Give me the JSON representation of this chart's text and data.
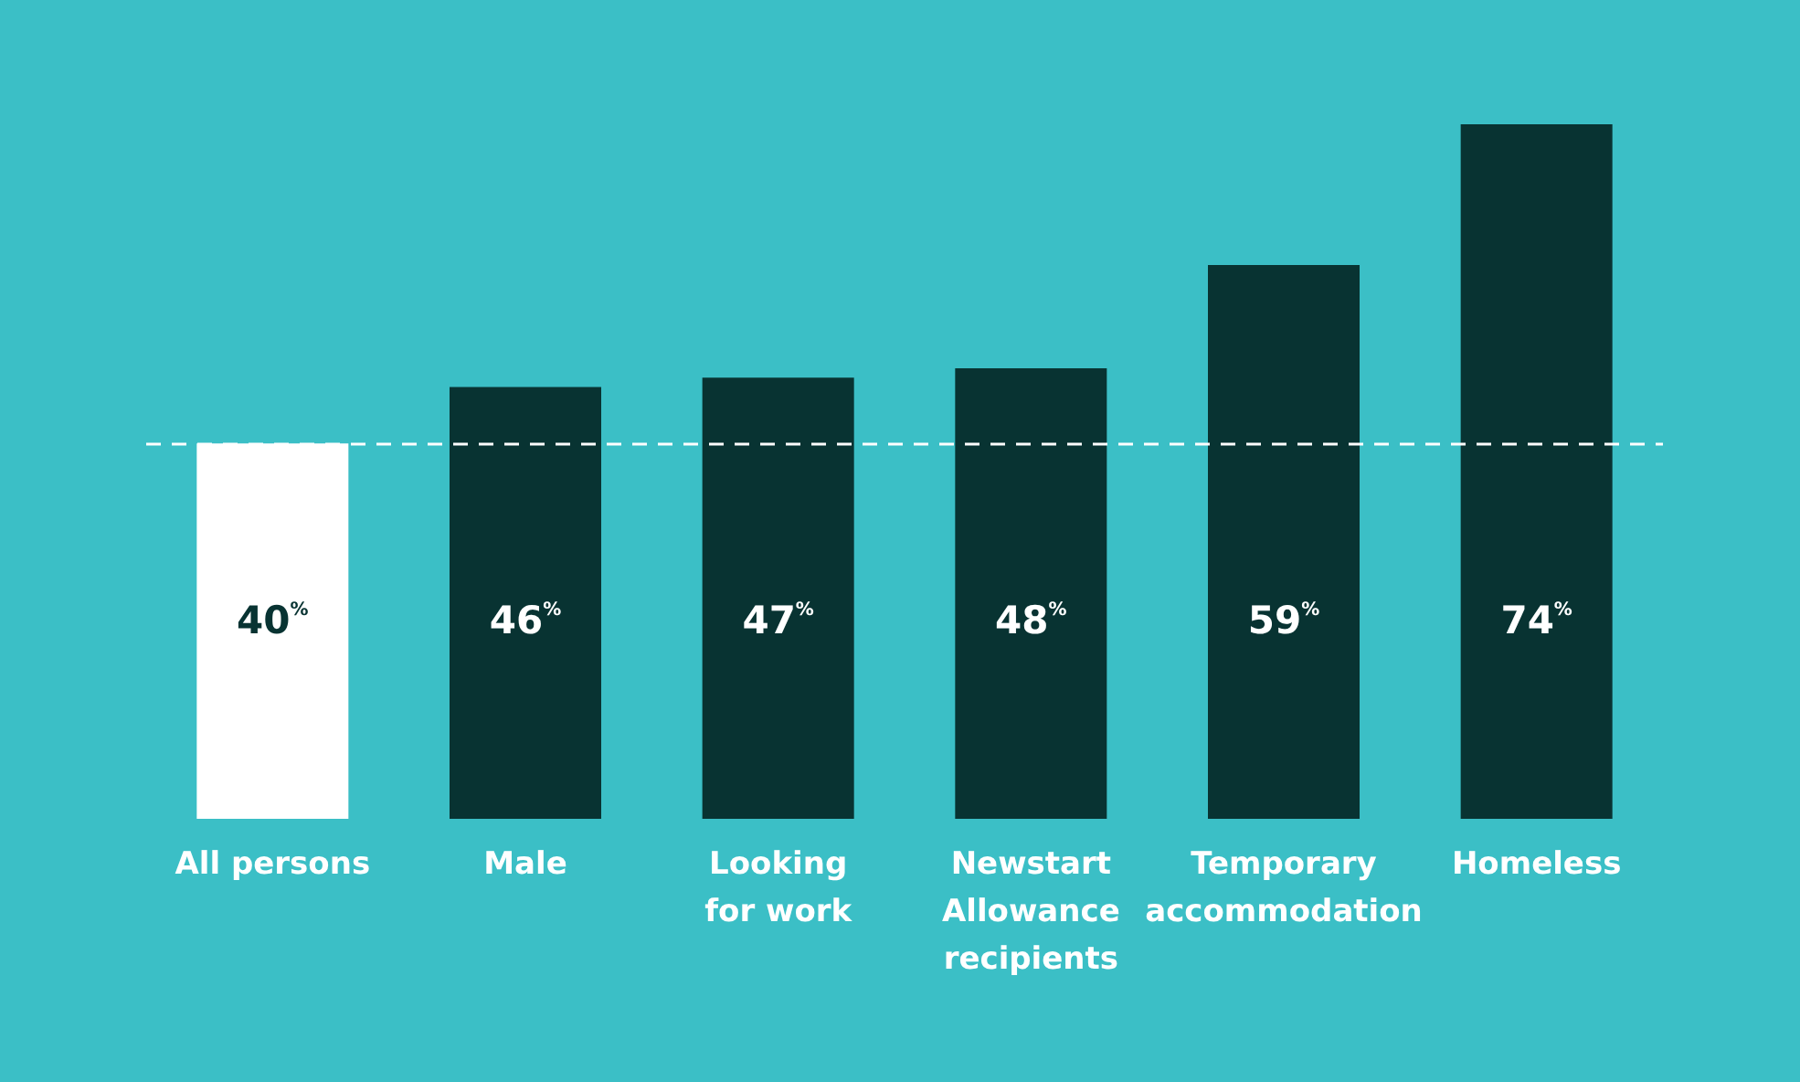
{
  "chart_data": {
    "type": "bar",
    "categories": [
      "All persons",
      "Male",
      "Looking\nfor work",
      "Newstart\nAllowance\nrecipients",
      "Temporary\naccommodation",
      "Homeless"
    ],
    "values": [
      40,
      46,
      47,
      48,
      59,
      74
    ],
    "colors": [
      "#ffffff",
      "#083332",
      "#083332",
      "#083332",
      "#083332",
      "#083332"
    ],
    "value_labels": [
      "40$^{%}$",
      "46$^{%}$",
      "47$^{%}$",
      "48$^{%}$",
      "59$^{%}$",
      "74$^{%}$"
    ],
    "ref_lines": [
      {
        "axis": "y",
        "value": 40,
        "color": "#ffffff",
        "line_style": "dashed"
      }
    ]
  }
}
